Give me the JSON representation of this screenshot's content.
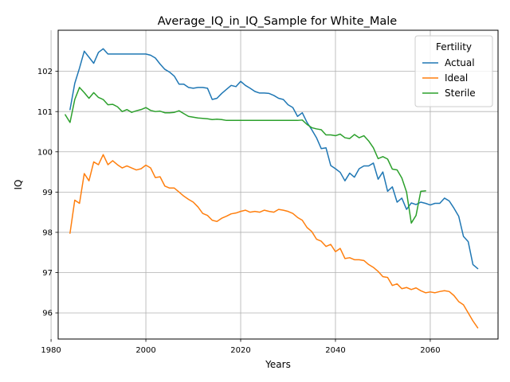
{
  "chart_data": {
    "type": "line",
    "title": "Average_IQ_in_IQ_Sample for White_Male",
    "xlabel": "Years",
    "ylabel": "IQ",
    "xlim": [
      1981.5,
      2074.3
    ],
    "ylim": [
      95.35,
      103.02
    ],
    "xticks": [
      1980,
      2000,
      2020,
      2040,
      2060
    ],
    "yticks": [
      96,
      97,
      98,
      99,
      100,
      101,
      102
    ],
    "grid": true,
    "legend": {
      "title": "Fertility",
      "placement": "top-right"
    },
    "series": [
      {
        "name": "Actual",
        "color": "#1f77b4",
        "x": [
          1984,
          1985,
          1986,
          1987,
          1988,
          1989,
          1990,
          1991,
          1992,
          1993,
          1994,
          1995,
          1996,
          1997,
          1998,
          1999,
          2000,
          2001,
          2002,
          2003,
          2004,
          2005,
          2006,
          2007,
          2008,
          2009,
          2010,
          2011,
          2012,
          2013,
          2014,
          2015,
          2016,
          2017,
          2018,
          2019,
          2020,
          2021,
          2022,
          2023,
          2024,
          2025,
          2026,
          2027,
          2028,
          2029,
          2030,
          2031,
          2032,
          2033,
          2034,
          2035,
          2036,
          2037,
          2038,
          2039,
          2040,
          2041,
          2042,
          2043,
          2044,
          2045,
          2046,
          2047,
          2048,
          2049,
          2050,
          2051,
          2052,
          2053,
          2054,
          2055,
          2056,
          2057,
          2058,
          2059,
          2060,
          2061,
          2062,
          2063,
          2064,
          2065,
          2066,
          2067,
          2068,
          2069,
          2070
        ],
        "y": [
          101.05,
          101.7,
          102.08,
          102.5,
          102.35,
          102.2,
          102.47,
          102.56,
          102.43,
          102.43,
          102.43,
          102.43,
          102.43,
          102.43,
          102.43,
          102.43,
          102.43,
          102.4,
          102.33,
          102.18,
          102.05,
          101.98,
          101.88,
          101.68,
          101.68,
          101.6,
          101.58,
          101.6,
          101.6,
          101.58,
          101.3,
          101.33,
          101.45,
          101.55,
          101.65,
          101.62,
          101.75,
          101.65,
          101.58,
          101.5,
          101.46,
          101.46,
          101.45,
          101.4,
          101.33,
          101.3,
          101.17,
          101.1,
          100.88,
          100.97,
          100.73,
          100.55,
          100.35,
          100.08,
          100.1,
          99.66,
          99.58,
          99.49,
          99.28,
          99.47,
          99.37,
          99.58,
          99.65,
          99.65,
          99.72,
          99.32,
          99.5,
          99.02,
          99.13,
          98.75,
          98.85,
          98.57,
          98.73,
          98.69,
          98.75,
          98.72,
          98.68,
          98.72,
          98.72,
          98.85,
          98.78,
          98.6,
          98.4,
          97.9,
          97.77,
          97.2,
          97.1
        ]
      },
      {
        "name": "Ideal",
        "color": "#ff7f0e",
        "x": [
          1984,
          1985,
          1986,
          1987,
          1988,
          1989,
          1990,
          1991,
          1992,
          1993,
          1994,
          1995,
          1996,
          1997,
          1998,
          1999,
          2000,
          2001,
          2002,
          2003,
          2004,
          2005,
          2006,
          2007,
          2008,
          2009,
          2010,
          2011,
          2012,
          2013,
          2014,
          2015,
          2016,
          2017,
          2018,
          2019,
          2020,
          2021,
          2022,
          2023,
          2024,
          2025,
          2026,
          2027,
          2028,
          2029,
          2030,
          2031,
          2032,
          2033,
          2034,
          2035,
          2036,
          2037,
          2038,
          2039,
          2040,
          2041,
          2042,
          2043,
          2044,
          2045,
          2046,
          2047,
          2048,
          2049,
          2050,
          2051,
          2052,
          2053,
          2054,
          2055,
          2056,
          2057,
          2058,
          2059,
          2060,
          2061,
          2062,
          2063,
          2064,
          2065,
          2066,
          2067,
          2068,
          2069,
          2070
        ],
        "y": [
          97.98,
          98.8,
          98.72,
          99.46,
          99.28,
          99.75,
          99.68,
          99.93,
          99.68,
          99.78,
          99.68,
          99.6,
          99.65,
          99.6,
          99.55,
          99.58,
          99.67,
          99.6,
          99.36,
          99.38,
          99.15,
          99.1,
          99.1,
          99.0,
          98.9,
          98.82,
          98.75,
          98.63,
          98.47,
          98.42,
          98.3,
          98.27,
          98.35,
          98.4,
          98.46,
          98.48,
          98.52,
          98.55,
          98.5,
          98.52,
          98.5,
          98.55,
          98.52,
          98.5,
          98.57,
          98.55,
          98.52,
          98.47,
          98.37,
          98.3,
          98.12,
          98.02,
          97.83,
          97.78,
          97.65,
          97.7,
          97.52,
          97.6,
          97.35,
          97.37,
          97.32,
          97.32,
          97.3,
          97.2,
          97.13,
          97.03,
          96.9,
          96.88,
          96.68,
          96.72,
          96.6,
          96.63,
          96.58,
          96.62,
          96.55,
          96.5,
          96.52,
          96.5,
          96.53,
          96.55,
          96.53,
          96.43,
          96.28,
          96.2,
          96.0,
          95.8,
          95.63
        ]
      },
      {
        "name": "Sterile",
        "color": "#2ca02c",
        "x": [
          1983,
          1984,
          1985,
          1986,
          1987,
          1988,
          1989,
          1990,
          1991,
          1992,
          1993,
          1994,
          1995,
          1996,
          1997,
          1998,
          1999,
          2000,
          2001,
          2002,
          2003,
          2004,
          2005,
          2006,
          2007,
          2008,
          2009,
          2010,
          2011,
          2012,
          2013,
          2014,
          2015,
          2016,
          2017,
          2018,
          2019,
          2020,
          2021,
          2022,
          2023,
          2024,
          2025,
          2026,
          2027,
          2028,
          2029,
          2030,
          2031,
          2032,
          2033,
          2034,
          2035,
          2036,
          2037,
          2038,
          2039,
          2040,
          2041,
          2042,
          2043,
          2044,
          2045,
          2046,
          2047,
          2048,
          2049,
          2050,
          2051,
          2052,
          2053,
          2054,
          2055,
          2056,
          2057,
          2058,
          2059
        ],
        "y": [
          100.92,
          100.73,
          101.3,
          101.6,
          101.47,
          101.33,
          101.47,
          101.35,
          101.3,
          101.17,
          101.18,
          101.12,
          101.0,
          101.05,
          100.98,
          101.02,
          101.05,
          101.1,
          101.03,
          101.0,
          101.01,
          100.97,
          100.97,
          100.98,
          101.02,
          100.95,
          100.88,
          100.86,
          100.84,
          100.83,
          100.82,
          100.8,
          100.81,
          100.8,
          100.78,
          100.78,
          100.78,
          100.78,
          100.78,
          100.78,
          100.78,
          100.78,
          100.78,
          100.78,
          100.78,
          100.78,
          100.78,
          100.78,
          100.78,
          100.78,
          100.79,
          100.68,
          100.6,
          100.57,
          100.55,
          100.42,
          100.42,
          100.4,
          100.44,
          100.35,
          100.33,
          100.43,
          100.35,
          100.4,
          100.27,
          100.1,
          99.83,
          99.88,
          99.82,
          99.57,
          99.55,
          99.35,
          99.0,
          98.23,
          98.42,
          99.02,
          99.03
        ]
      }
    ]
  }
}
